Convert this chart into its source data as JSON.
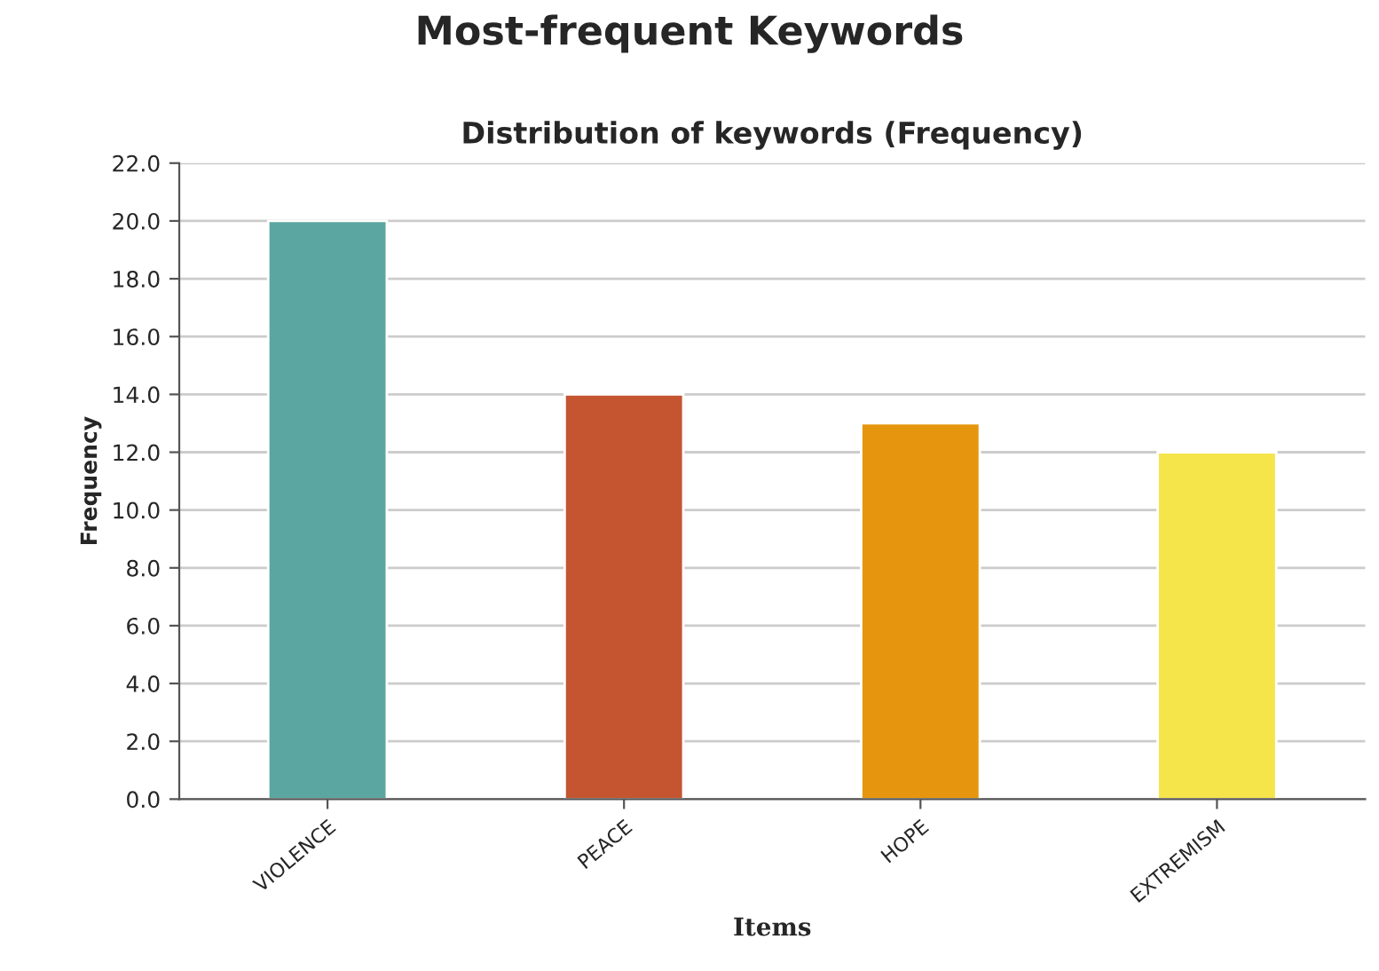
{
  "chart_data": {
    "type": "bar",
    "title": "Most-frequent Keywords",
    "subtitle": "Distribution of keywords (Frequency)",
    "xlabel": "Items",
    "ylabel": "Frequency",
    "categories": [
      "VIOLENCE",
      "PEACE",
      "HOPE",
      "EXTREMISM"
    ],
    "values": [
      20,
      14,
      13,
      12
    ],
    "colors": [
      "#5ba6a0",
      "#c45530",
      "#e6960e",
      "#f5e54a"
    ],
    "ylim": [
      0,
      22
    ],
    "yticks": [
      {
        "value": 0,
        "label": "0.0"
      },
      {
        "value": 2,
        "label": "2.0"
      },
      {
        "value": 4,
        "label": "4.0"
      },
      {
        "value": 6,
        "label": "6.0"
      },
      {
        "value": 8,
        "label": "8.0"
      },
      {
        "value": 10,
        "label": "10.0"
      },
      {
        "value": 12,
        "label": "12.0"
      },
      {
        "value": 14,
        "label": "14.0"
      },
      {
        "value": 16,
        "label": "16.0"
      },
      {
        "value": 18,
        "label": "18.0"
      },
      {
        "value": 20,
        "label": "20.0"
      },
      {
        "value": 22,
        "label": "22.0"
      }
    ],
    "grid": "y"
  }
}
